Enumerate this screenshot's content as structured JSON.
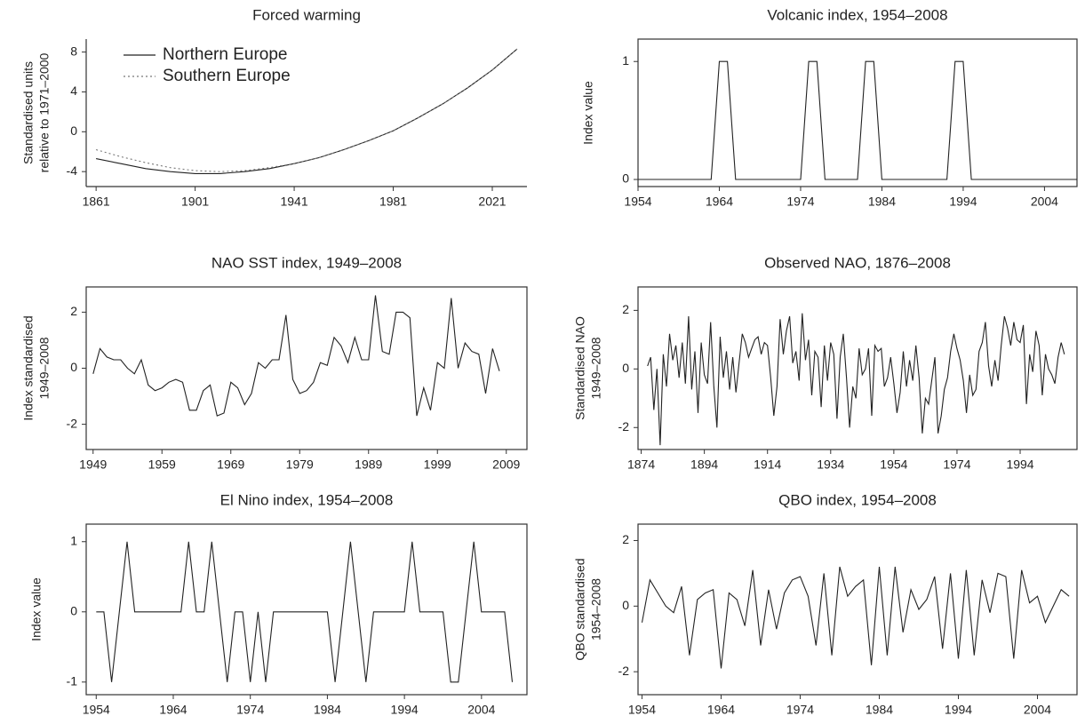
{
  "chart_data": [
    {
      "type": "line",
      "title": "Forced warming",
      "ylabel": [
        "Standardised units",
        "relative to 1971–2000"
      ],
      "x": [
        1861,
        1871,
        1881,
        1891,
        1901,
        1911,
        1921,
        1931,
        1941,
        1951,
        1961,
        1971,
        1981,
        1991,
        2001,
        2011,
        2021,
        2031
      ],
      "series": [
        {
          "name": "Northern Europe",
          "color": "#222222",
          "line_style": "solid",
          "values": [
            -2.7,
            -3.2,
            -3.7,
            -4.0,
            -4.2,
            -4.2,
            -4.0,
            -3.7,
            -3.2,
            -2.6,
            -1.8,
            -0.9,
            0.1,
            1.4,
            2.8,
            4.4,
            6.2,
            8.3
          ]
        },
        {
          "name": "Southern Europe",
          "color": "#777777",
          "line_style": "dotted",
          "values": [
            -1.8,
            -2.5,
            -3.1,
            -3.6,
            -3.9,
            -4.0,
            -3.9,
            -3.6,
            -3.2,
            -2.6,
            -1.8,
            -0.9,
            0.1,
            1.4,
            2.8,
            4.4,
            6.2,
            8.3
          ]
        }
      ],
      "xlim": [
        1857,
        2035
      ],
      "ylim": [
        -5.5,
        9.3
      ],
      "xticks": [
        1861,
        1901,
        1941,
        1981,
        2021
      ],
      "yticks": [
        -4,
        0,
        4,
        8
      ],
      "box": false,
      "legend": "upper left"
    },
    {
      "type": "line",
      "title": "Volcanic index, 1954–2008",
      "ylabel": [
        "Index value"
      ],
      "color": "#222222",
      "x": [
        1954,
        1963,
        1964,
        1965,
        1966,
        1974,
        1975,
        1976,
        1977,
        1981,
        1982,
        1983,
        1984,
        1992,
        1993,
        1994,
        1995,
        2008
      ],
      "values": [
        0,
        0,
        1,
        1,
        0,
        0,
        1,
        1,
        0,
        0,
        1,
        1,
        0,
        0,
        1,
        1,
        0,
        0
      ],
      "xlim": [
        1954,
        2008
      ],
      "ylim": [
        -0.06,
        1.19
      ],
      "xticks": [
        1954,
        1964,
        1974,
        1984,
        1994,
        2004
      ],
      "yticks": [
        0,
        1
      ],
      "box": true
    },
    {
      "type": "line",
      "title": "NAO SST index, 1949–2008",
      "ylabel": [
        "Index standardised",
        "1949–2008"
      ],
      "color": "#222222",
      "x": [
        1949,
        1950,
        1951,
        1952,
        1953,
        1954,
        1955,
        1956,
        1957,
        1958,
        1959,
        1960,
        1961,
        1962,
        1963,
        1964,
        1965,
        1966,
        1967,
        1968,
        1969,
        1970,
        1971,
        1972,
        1973,
        1974,
        1975,
        1976,
        1977,
        1978,
        1979,
        1980,
        1981,
        1982,
        1983,
        1984,
        1985,
        1986,
        1987,
        1988,
        1989,
        1990,
        1991,
        1992,
        1993,
        1994,
        1995,
        1996,
        1997,
        1998,
        1999,
        2000,
        2001,
        2002,
        2003,
        2004,
        2005,
        2006,
        2007,
        2008
      ],
      "values": [
        -0.2,
        0.7,
        0.4,
        0.3,
        0.3,
        0.0,
        -0.2,
        0.3,
        -0.6,
        -0.8,
        -0.7,
        -0.5,
        -0.4,
        -0.5,
        -1.5,
        -1.5,
        -0.8,
        -0.6,
        -1.7,
        -1.6,
        -0.5,
        -0.7,
        -1.3,
        -0.9,
        0.2,
        0.0,
        0.3,
        0.3,
        1.9,
        -0.4,
        -0.9,
        -0.8,
        -0.5,
        0.2,
        0.1,
        1.1,
        0.8,
        0.2,
        1.1,
        0.3,
        0.3,
        2.6,
        0.6,
        0.5,
        2.0,
        2.0,
        1.8,
        -1.7,
        -0.7,
        -1.5,
        0.2,
        0.0,
        2.5,
        0.0,
        0.9,
        0.6,
        0.5,
        -0.9,
        0.7,
        -0.1
      ],
      "xlim": [
        1948,
        2012
      ],
      "ylim": [
        -2.9,
        2.9
      ],
      "xticks": [
        1949,
        1959,
        1969,
        1979,
        1989,
        1999,
        2009
      ],
      "yticks": [
        -2,
        0,
        2
      ],
      "box": true
    },
    {
      "type": "line",
      "title": "Observed NAO, 1876–2008",
      "ylabel": [
        "Standardised NAO",
        "1949–2008"
      ],
      "color": "#222222",
      "x": [
        1876,
        1877,
        1878,
        1879,
        1880,
        1881,
        1882,
        1883,
        1884,
        1885,
        1886,
        1887,
        1888,
        1889,
        1890,
        1891,
        1892,
        1893,
        1894,
        1895,
        1896,
        1897,
        1898,
        1899,
        1900,
        1901,
        1902,
        1903,
        1904,
        1905,
        1906,
        1907,
        1908,
        1909,
        1910,
        1911,
        1912,
        1913,
        1914,
        1915,
        1916,
        1917,
        1918,
        1919,
        1920,
        1921,
        1922,
        1923,
        1924,
        1925,
        1926,
        1927,
        1928,
        1929,
        1930,
        1931,
        1932,
        1933,
        1934,
        1935,
        1936,
        1937,
        1938,
        1939,
        1940,
        1941,
        1942,
        1943,
        1944,
        1945,
        1946,
        1947,
        1948,
        1949,
        1950,
        1951,
        1952,
        1953,
        1954,
        1955,
        1956,
        1957,
        1958,
        1959,
        1960,
        1961,
        1962,
        1963,
        1964,
        1965,
        1966,
        1967,
        1968,
        1969,
        1970,
        1971,
        1972,
        1973,
        1974,
        1975,
        1976,
        1977,
        1978,
        1979,
        1980,
        1981,
        1982,
        1983,
        1984,
        1985,
        1986,
        1987,
        1988,
        1989,
        1990,
        1991,
        1992,
        1993,
        1994,
        1995,
        1996,
        1997,
        1998,
        1999,
        2000,
        2001,
        2002,
        2003,
        2004,
        2005,
        2006,
        2007,
        2008
      ],
      "values": [
        0.1,
        0.4,
        -1.4,
        0.0,
        -2.6,
        0.5,
        -0.6,
        1.2,
        0.3,
        0.8,
        -0.3,
        0.9,
        -0.5,
        1.8,
        -0.7,
        0.6,
        -1.5,
        0.9,
        -0.2,
        -0.5,
        1.6,
        -0.6,
        -2.0,
        1.1,
        -0.3,
        0.6,
        -0.7,
        0.4,
        -0.8,
        0.2,
        1.2,
        0.9,
        0.4,
        0.7,
        1.0,
        1.1,
        0.5,
        0.9,
        0.8,
        -0.3,
        -1.6,
        -0.6,
        1.7,
        0.5,
        1.3,
        1.8,
        0.2,
        0.6,
        -0.4,
        1.9,
        0.3,
        1.0,
        -0.9,
        0.6,
        0.4,
        -1.3,
        0.8,
        -0.4,
        0.9,
        0.5,
        -1.7,
        0.4,
        1.2,
        -0.3,
        -2.0,
        -0.6,
        -1.0,
        0.7,
        -0.2,
        0.0,
        0.7,
        -1.6,
        0.8,
        0.6,
        0.7,
        -0.6,
        -0.3,
        0.4,
        -0.5,
        -1.5,
        -0.8,
        0.6,
        -0.6,
        0.3,
        -0.4,
        0.8,
        -0.3,
        -2.2,
        -1.0,
        -1.2,
        -0.4,
        0.4,
        -2.2,
        -1.6,
        -0.7,
        -0.3,
        0.6,
        1.2,
        0.7,
        0.3,
        -0.4,
        -1.5,
        -0.2,
        -0.9,
        -0.7,
        0.6,
        0.9,
        1.6,
        0.1,
        -0.6,
        0.3,
        -0.4,
        0.8,
        1.8,
        1.4,
        0.8,
        1.6,
        1.0,
        0.9,
        1.5,
        -1.2,
        0.5,
        -0.1,
        1.3,
        0.8,
        -0.9,
        0.5,
        0.0,
        -0.2,
        -0.5,
        0.4,
        0.9,
        0.5
      ],
      "xlim": [
        1873,
        2012
      ],
      "ylim": [
        -2.75,
        2.8
      ],
      "xticks": [
        1874,
        1894,
        1914,
        1934,
        1954,
        1974,
        1994
      ],
      "yticks": [
        -2,
        0,
        2
      ],
      "box": true
    },
    {
      "type": "line",
      "title": "El Nino index, 1954–2008",
      "ylabel": [
        "Index value"
      ],
      "color": "#222222",
      "x": [
        1954,
        1955,
        1956,
        1957,
        1958,
        1959,
        1960,
        1961,
        1962,
        1963,
        1964,
        1965,
        1966,
        1967,
        1968,
        1969,
        1970,
        1971,
        1972,
        1973,
        1974,
        1975,
        1976,
        1977,
        1978,
        1979,
        1980,
        1981,
        1982,
        1983,
        1984,
        1985,
        1986,
        1987,
        1988,
        1989,
        1990,
        1991,
        1992,
        1993,
        1994,
        1995,
        1996,
        1997,
        1998,
        1999,
        2000,
        2001,
        2002,
        2003,
        2004,
        2005,
        2006,
        2007,
        2008
      ],
      "values": [
        0,
        0,
        -1,
        0,
        1,
        0,
        0,
        0,
        0,
        0,
        0,
        0,
        1,
        0,
        0,
        1,
        0,
        -1,
        0,
        0,
        -1,
        0,
        -1,
        0,
        0,
        0,
        0,
        0,
        0,
        0,
        0,
        -1,
        0,
        1,
        0,
        -1,
        0,
        0,
        0,
        0,
        0,
        1,
        0,
        0,
        0,
        0,
        -1,
        -1,
        0,
        1,
        0,
        0,
        0,
        0,
        -1
      ],
      "xlim": [
        1952.7,
        2009.9
      ],
      "ylim": [
        -1.18,
        1.25
      ],
      "xticks": [
        1954,
        1964,
        1974,
        1984,
        1994,
        2004
      ],
      "yticks": [
        -1,
        0,
        1
      ],
      "box": true
    },
    {
      "type": "line",
      "title": "QBO index, 1954–2008",
      "ylabel": [
        "QBO standardised",
        "1954–2008"
      ],
      "color": "#222222",
      "x": [
        1954,
        1955,
        1956,
        1957,
        1958,
        1959,
        1960,
        1961,
        1962,
        1963,
        1964,
        1965,
        1966,
        1967,
        1968,
        1969,
        1970,
        1971,
        1972,
        1973,
        1974,
        1975,
        1976,
        1977,
        1978,
        1979,
        1980,
        1981,
        1982,
        1983,
        1984,
        1985,
        1986,
        1987,
        1988,
        1989,
        1990,
        1991,
        1992,
        1993,
        1994,
        1995,
        1996,
        1997,
        1998,
        1999,
        2000,
        2001,
        2002,
        2003,
        2004,
        2005,
        2006,
        2007,
        2008
      ],
      "values": [
        -0.5,
        0.8,
        0.4,
        0.0,
        -0.2,
        0.6,
        -1.5,
        0.2,
        0.4,
        0.5,
        -1.9,
        0.4,
        0.2,
        -0.6,
        1.1,
        -1.2,
        0.5,
        -0.7,
        0.4,
        0.8,
        0.9,
        0.3,
        -1.2,
        1.0,
        -1.5,
        1.2,
        0.3,
        0.6,
        0.8,
        -1.8,
        1.2,
        -1.5,
        1.2,
        -0.8,
        0.5,
        -0.1,
        0.2,
        0.9,
        -1.3,
        1.0,
        -1.6,
        1.1,
        -1.5,
        0.8,
        -0.2,
        1.0,
        0.9,
        -1.6,
        1.1,
        0.1,
        0.3,
        -0.5,
        0.0,
        0.5,
        0.3
      ],
      "xlim": [
        1953.5,
        2009
      ],
      "ylim": [
        -2.7,
        2.5
      ],
      "xticks": [
        1954,
        1964,
        1974,
        1984,
        1994,
        2004
      ],
      "yticks": [
        -2,
        0,
        2
      ],
      "box": true
    }
  ]
}
